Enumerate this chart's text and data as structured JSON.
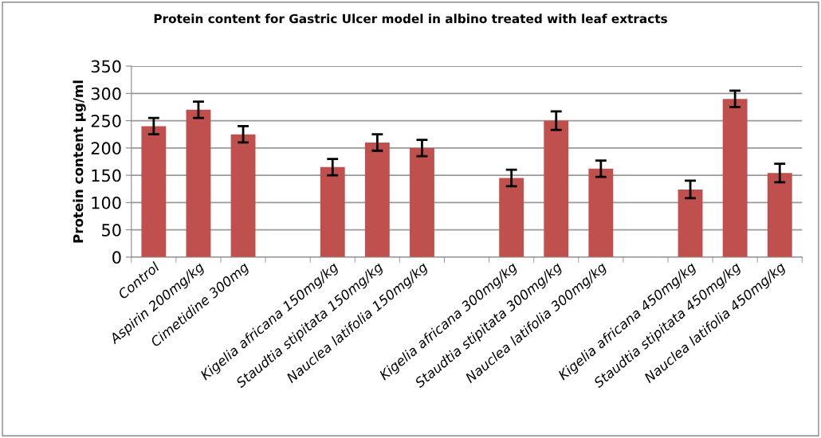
{
  "chart_data": {
    "type": "bar",
    "title": "Protein content for Gastric Ulcer model in albino treated with leaf extracts",
    "ylabel": "Protein content µg/ml",
    "categories": [
      "Control",
      "Aspirin 200mg/kg",
      "Cimetidine 300mg",
      null,
      "Kigelia africana 150mg/kg",
      "Staudtia stipitata 150mg/kg",
      "Nauclea latifolia 150mg/kg",
      null,
      "Kigelia africana 300mg/kg",
      "Staudtia stipitata 300mg/kg",
      "Nauclea latifolia 300mg/kg",
      null,
      "Kigelia africana 450mg/kg",
      "Staudtia stipitata 450mg/kg",
      "Nauclea latifolia 450mg/kg"
    ],
    "series": [
      {
        "color": "#c0504d",
        "values": [
          240,
          270,
          225,
          null,
          165,
          210,
          200,
          null,
          145,
          250,
          162,
          null,
          124,
          290,
          154
        ],
        "errors": [
          15,
          15,
          15,
          null,
          15,
          15,
          15,
          null,
          15,
          17,
          15,
          null,
          16,
          15,
          17
        ]
      }
    ],
    "ylim": [
      0,
      350
    ],
    "yticks": [
      0,
      50,
      100,
      150,
      200,
      250,
      300,
      350
    ],
    "grid": "y",
    "legend": false
  }
}
